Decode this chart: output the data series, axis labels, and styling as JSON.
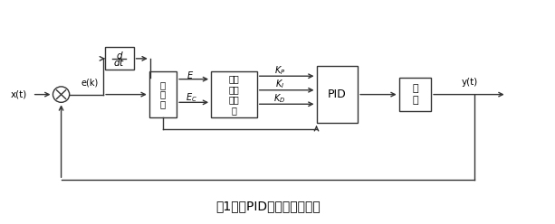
{
  "title": "图1模糊PID控制器结构框图",
  "title_fontsize": 10,
  "background_color": "#ffffff",
  "line_color": "#333333",
  "box_color": "#ffffff",
  "box_edge_color": "#333333",
  "figsize": [
    6.13,
    2.48
  ],
  "dpi": 100,
  "xlim": [
    0,
    12
  ],
  "ylim": [
    0,
    5
  ]
}
